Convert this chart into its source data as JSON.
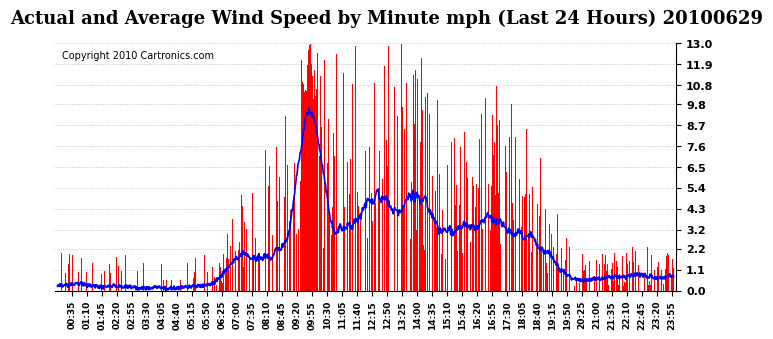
{
  "title": "Actual and Average Wind Speed by Minute mph (Last 24 Hours) 20100629",
  "copyright": "Copyright 2010 Cartronics.com",
  "yticks": [
    0.0,
    1.1,
    2.2,
    3.2,
    4.3,
    5.4,
    6.5,
    7.6,
    8.7,
    9.8,
    10.8,
    11.9,
    13.0
  ],
  "ymax": 13.0,
  "ymin": 0.0,
  "bar_color": "#ff0000",
  "line_color": "#0000ff",
  "bg_color": "#ffffff",
  "grid_color": "#aaaaaa",
  "title_fontsize": 13,
  "copyright_fontsize": 7,
  "xtick_fontsize": 6.5,
  "ytick_fontsize": 8
}
